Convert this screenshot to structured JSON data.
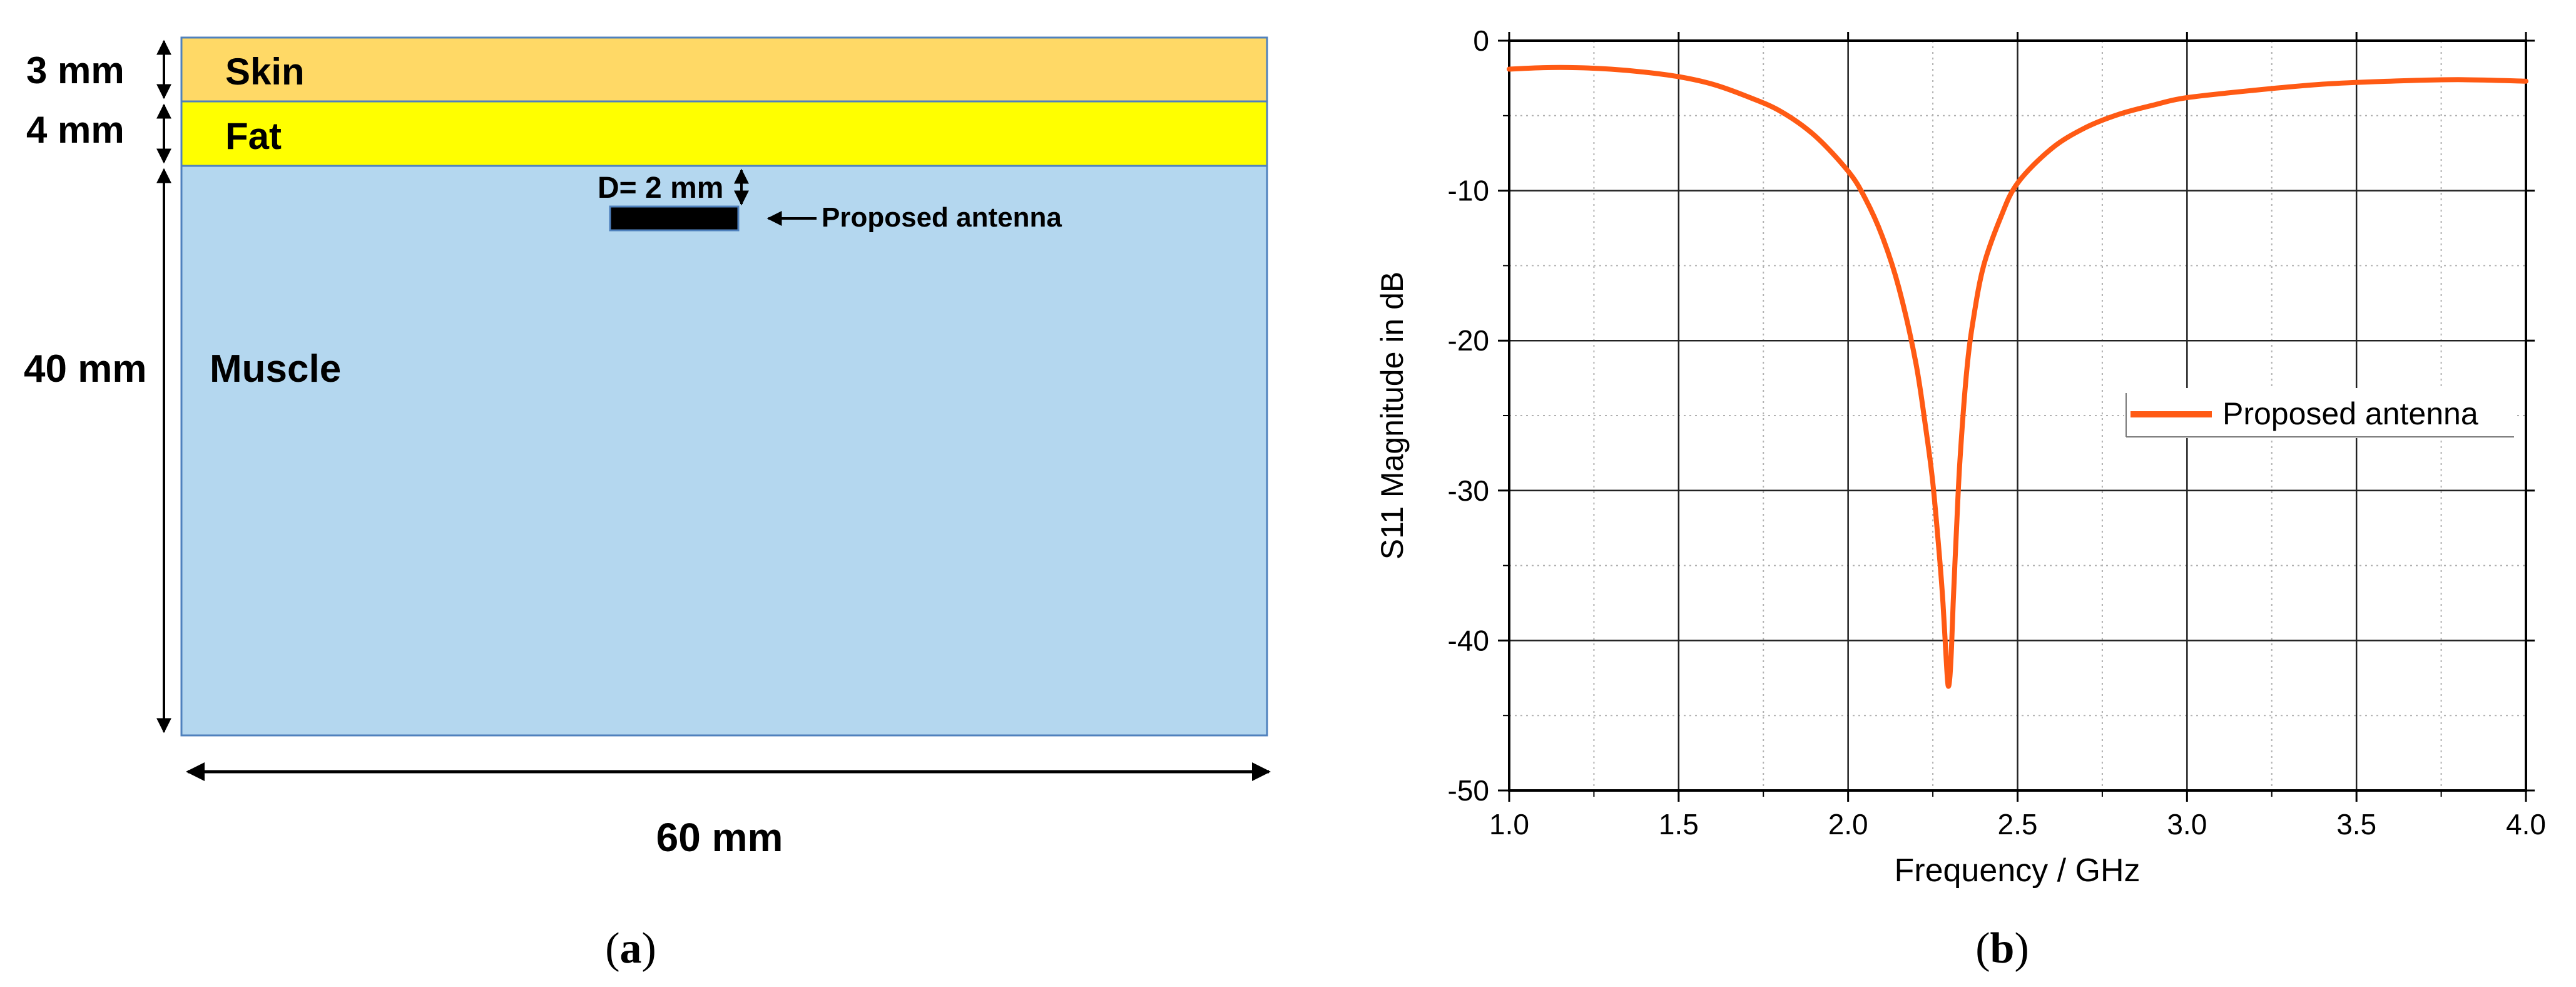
{
  "panel_a": {
    "layers": {
      "skin": {
        "label": "Skin",
        "thickness": "3 mm",
        "color": "#ffd966"
      },
      "fat": {
        "label": "Fat",
        "thickness": "4 mm",
        "color": "#ffff00"
      },
      "muscle": {
        "label": "Muscle",
        "thickness": "40 mm",
        "color": "#b4d7ef"
      }
    },
    "depth_label": "D= 2 mm",
    "antenna_label": "Proposed antenna",
    "width_label": "60 mm",
    "caption_open": "(",
    "caption_letter": "a",
    "caption_close": ")"
  },
  "panel_b": {
    "caption_open": "(",
    "caption_letter": "b",
    "caption_close": ")",
    "line_color": "#ff5a14"
  },
  "chart_data": {
    "type": "line",
    "title": "",
    "xlabel": "Frequency / GHz",
    "ylabel": "S11 Magnitude in dB",
    "xlim": [
      1.0,
      4.0
    ],
    "ylim": [
      -50,
      0
    ],
    "x_ticks": [
      "1.0",
      "1.5",
      "2.0",
      "2.5",
      "3.0",
      "3.5",
      "4.0"
    ],
    "y_ticks": [
      "0",
      "-10",
      "-20",
      "-30",
      "-40",
      "-50"
    ],
    "grid": true,
    "legend": "center-right",
    "series": [
      {
        "name": "Proposed antenna",
        "x": [
          1.0,
          1.1,
          1.2,
          1.3,
          1.4,
          1.5,
          1.6,
          1.7,
          1.8,
          1.9,
          2.0,
          2.05,
          2.1,
          2.15,
          2.2,
          2.23,
          2.25,
          2.27,
          2.28,
          2.29,
          2.295,
          2.3,
          2.305,
          2.31,
          2.32,
          2.33,
          2.35,
          2.37,
          2.4,
          2.45,
          2.5,
          2.6,
          2.7,
          2.8,
          2.9,
          3.0,
          3.2,
          3.4,
          3.6,
          3.8,
          4.0
        ],
        "y": [
          -1.9,
          -1.8,
          -1.8,
          -1.9,
          -2.1,
          -2.4,
          -2.9,
          -3.7,
          -4.7,
          -6.3,
          -8.7,
          -10.5,
          -13.0,
          -16.5,
          -21.5,
          -26.0,
          -29.5,
          -34.5,
          -37.5,
          -41.5,
          -43.0,
          -42.5,
          -40.5,
          -37.5,
          -32.5,
          -28.0,
          -22.0,
          -18.5,
          -15.0,
          -11.8,
          -9.5,
          -7.2,
          -5.8,
          -4.9,
          -4.3,
          -3.8,
          -3.3,
          -2.9,
          -2.7,
          -2.6,
          -2.7
        ]
      }
    ]
  }
}
